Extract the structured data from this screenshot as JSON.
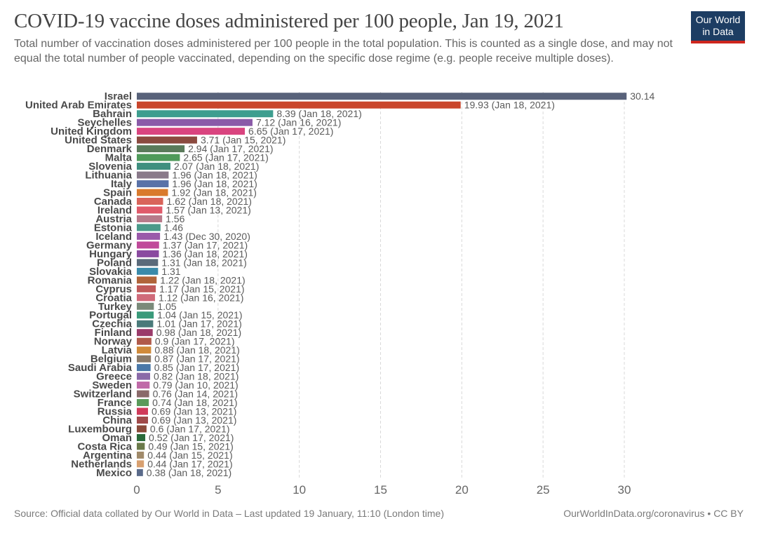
{
  "header": {
    "title": "COVID-19 vaccine doses administered per 100 people, Jan 19, 2021",
    "subtitle": "Total number of vaccination doses administered per 100 people in the total population. This is counted as a single dose, and may not equal the total number of people vaccinated, depending on the specific dose regime (e.g. people receive multiple doses)."
  },
  "logo": {
    "line1": "Our World",
    "line2": "in Data"
  },
  "footer": {
    "source": "Source: Official data collated by Our World in Data – Last updated 19 January, 11:10 (London time)",
    "credit": "OurWorldInData.org/coronavirus • CC BY"
  },
  "colors": {
    "bar_palette": [
      "#58627a",
      "#c9462c",
      "#3e9e8f",
      "#8a5aa8",
      "#d9447f",
      "#8b4a3f",
      "#5a7a5a",
      "#4f9a5a",
      "#3f8f7f",
      "#8a7a8a",
      "#5a72a8",
      "#d97a2c",
      "#d9645a",
      "#e05a6a",
      "#b77a8a",
      "#4a9a8a",
      "#9a5aaa",
      "#c04a9a",
      "#8a4aa0",
      "#5a6a7a",
      "#3a8aaa",
      "#b0643a",
      "#c05a5a",
      "#d06a7a",
      "#7a8a7a",
      "#3a9a7a",
      "#4a7a7a",
      "#9a3a6a",
      "#b05a4a",
      "#d08a3a",
      "#8a7a6a",
      "#4a78a8",
      "#8a6aa8",
      "#c06aa8",
      "#8a6a6a",
      "#5a9a5a",
      "#d03a5a",
      "#a04a4a",
      "#8a4a3a",
      "#2a6a3a",
      "#6a7a4a",
      "#a08a6a",
      "#d8a070",
      "#5a6a8a"
    ],
    "grid": "#d9d9d9",
    "value_label": "#5b5b5b"
  },
  "chart_data": {
    "type": "bar",
    "orientation": "horizontal",
    "xlim": [
      0,
      30
    ],
    "xticks": [
      0,
      5,
      10,
      15,
      20,
      25,
      30
    ],
    "grid": true,
    "bars": [
      {
        "category": "Israel",
        "value": 30.14,
        "label": "30.14"
      },
      {
        "category": "United Arab Emirates",
        "value": 19.93,
        "label": "19.93 (Jan 18, 2021)"
      },
      {
        "category": "Bahrain",
        "value": 8.39,
        "label": "8.39 (Jan 18, 2021)"
      },
      {
        "category": "Seychelles",
        "value": 7.12,
        "label": "7.12 (Jan 16, 2021)"
      },
      {
        "category": "United Kingdom",
        "value": 6.65,
        "label": "6.65 (Jan 17, 2021)"
      },
      {
        "category": "United States",
        "value": 3.71,
        "label": "3.71 (Jan 15, 2021)"
      },
      {
        "category": "Denmark",
        "value": 2.94,
        "label": "2.94 (Jan 17, 2021)"
      },
      {
        "category": "Malta",
        "value": 2.65,
        "label": "2.65 (Jan 17, 2021)"
      },
      {
        "category": "Slovenia",
        "value": 2.07,
        "label": "2.07 (Jan 18, 2021)"
      },
      {
        "category": "Lithuania",
        "value": 1.96,
        "label": "1.96 (Jan 18, 2021)"
      },
      {
        "category": "Italy",
        "value": 1.96,
        "label": "1.96 (Jan 18, 2021)"
      },
      {
        "category": "Spain",
        "value": 1.92,
        "label": "1.92 (Jan 18, 2021)"
      },
      {
        "category": "Canada",
        "value": 1.62,
        "label": "1.62 (Jan 18, 2021)"
      },
      {
        "category": "Ireland",
        "value": 1.57,
        "label": "1.57 (Jan 13, 2021)"
      },
      {
        "category": "Austria",
        "value": 1.56,
        "label": "1.56"
      },
      {
        "category": "Estonia",
        "value": 1.46,
        "label": "1.46"
      },
      {
        "category": "Iceland",
        "value": 1.43,
        "label": "1.43 (Dec 30, 2020)"
      },
      {
        "category": "Germany",
        "value": 1.37,
        "label": "1.37 (Jan 17, 2021)"
      },
      {
        "category": "Hungary",
        "value": 1.36,
        "label": "1.36 (Jan 18, 2021)"
      },
      {
        "category": "Poland",
        "value": 1.31,
        "label": "1.31 (Jan 18, 2021)"
      },
      {
        "category": "Slovakia",
        "value": 1.31,
        "label": "1.31"
      },
      {
        "category": "Romania",
        "value": 1.22,
        "label": "1.22 (Jan 18, 2021)"
      },
      {
        "category": "Cyprus",
        "value": 1.17,
        "label": "1.17 (Jan 15, 2021)"
      },
      {
        "category": "Croatia",
        "value": 1.12,
        "label": "1.12 (Jan 16, 2021)"
      },
      {
        "category": "Turkey",
        "value": 1.05,
        "label": "1.05"
      },
      {
        "category": "Portugal",
        "value": 1.04,
        "label": "1.04 (Jan 15, 2021)"
      },
      {
        "category": "Czechia",
        "value": 1.01,
        "label": "1.01 (Jan 17, 2021)"
      },
      {
        "category": "Finland",
        "value": 0.98,
        "label": "0.98 (Jan 18, 2021)"
      },
      {
        "category": "Norway",
        "value": 0.9,
        "label": "0.9 (Jan 17, 2021)"
      },
      {
        "category": "Latvia",
        "value": 0.88,
        "label": "0.88 (Jan 18, 2021)"
      },
      {
        "category": "Belgium",
        "value": 0.87,
        "label": "0.87 (Jan 17, 2021)"
      },
      {
        "category": "Saudi Arabia",
        "value": 0.85,
        "label": "0.85 (Jan 17, 2021)"
      },
      {
        "category": "Greece",
        "value": 0.82,
        "label": "0.82 (Jan 18, 2021)"
      },
      {
        "category": "Sweden",
        "value": 0.79,
        "label": "0.79 (Jan 10, 2021)"
      },
      {
        "category": "Switzerland",
        "value": 0.76,
        "label": "0.76 (Jan 14, 2021)"
      },
      {
        "category": "France",
        "value": 0.74,
        "label": "0.74 (Jan 18, 2021)"
      },
      {
        "category": "Russia",
        "value": 0.69,
        "label": "0.69 (Jan 13, 2021)"
      },
      {
        "category": "China",
        "value": 0.69,
        "label": "0.69 (Jan 13, 2021)"
      },
      {
        "category": "Luxembourg",
        "value": 0.6,
        "label": "0.6 (Jan 17, 2021)"
      },
      {
        "category": "Oman",
        "value": 0.52,
        "label": "0.52 (Jan 17, 2021)"
      },
      {
        "category": "Costa Rica",
        "value": 0.49,
        "label": "0.49 (Jan 15, 2021)"
      },
      {
        "category": "Argentina",
        "value": 0.44,
        "label": "0.44 (Jan 15, 2021)"
      },
      {
        "category": "Netherlands",
        "value": 0.44,
        "label": "0.44 (Jan 17, 2021)"
      },
      {
        "category": "Mexico",
        "value": 0.38,
        "label": "0.38 (Jan 18, 2021)"
      }
    ]
  }
}
